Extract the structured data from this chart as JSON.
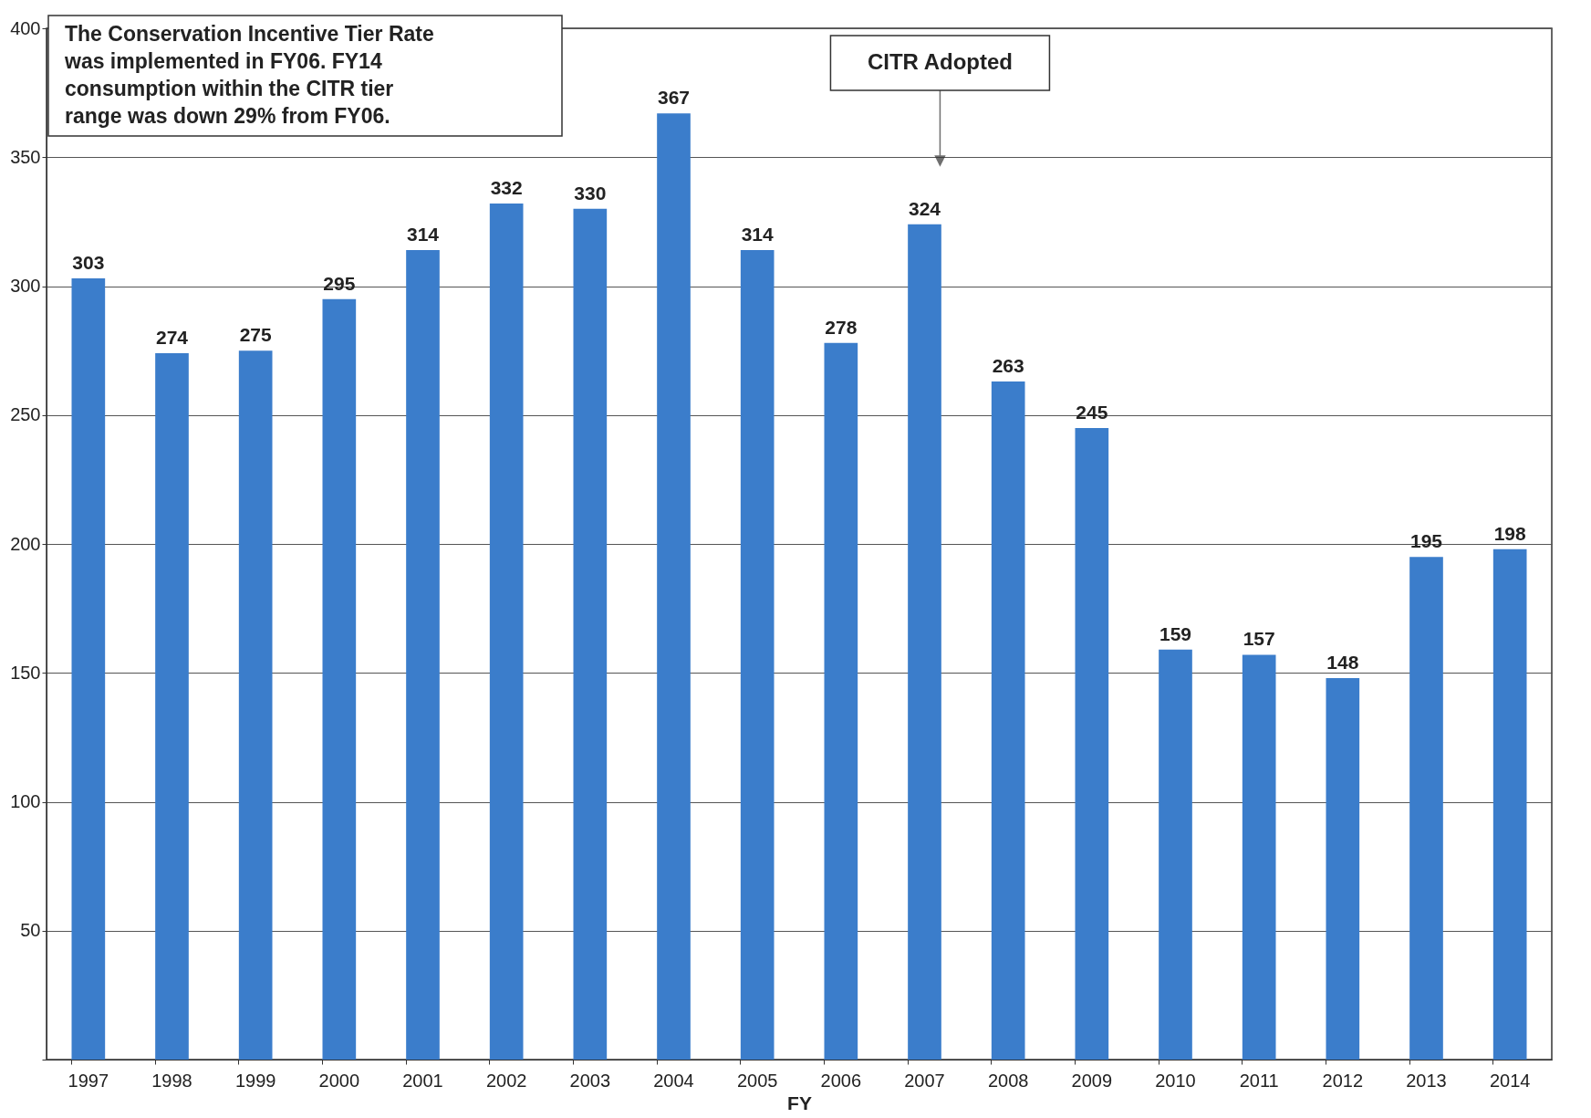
{
  "chart_data": {
    "type": "bar",
    "xlabel": "FY",
    "categories": [
      "1997",
      "1998",
      "1999",
      "2000",
      "2001",
      "2002",
      "2003",
      "2004",
      "2005",
      "2006",
      "2007",
      "2008",
      "2009",
      "2010",
      "2011",
      "2012",
      "2013",
      "2014"
    ],
    "values": [
      303,
      274,
      275,
      295,
      314,
      332,
      330,
      367,
      314,
      278,
      324,
      263,
      245,
      159,
      157,
      148,
      195,
      198
    ],
    "color": "#3b7dcb",
    "data_labels": true,
    "grid": "y",
    "ylim": [
      0,
      400
    ],
    "yticks": [
      {
        "value": 0,
        "label": null
      },
      50,
      100,
      150,
      200,
      250,
      300,
      350,
      400
    ],
    "annotations": [
      "The Conservation Incentive Tier Rate was implemented in FY06. FY14 consumption within the CITR tier range was down 29% from FY06.",
      "CITR Adopted"
    ]
  }
}
